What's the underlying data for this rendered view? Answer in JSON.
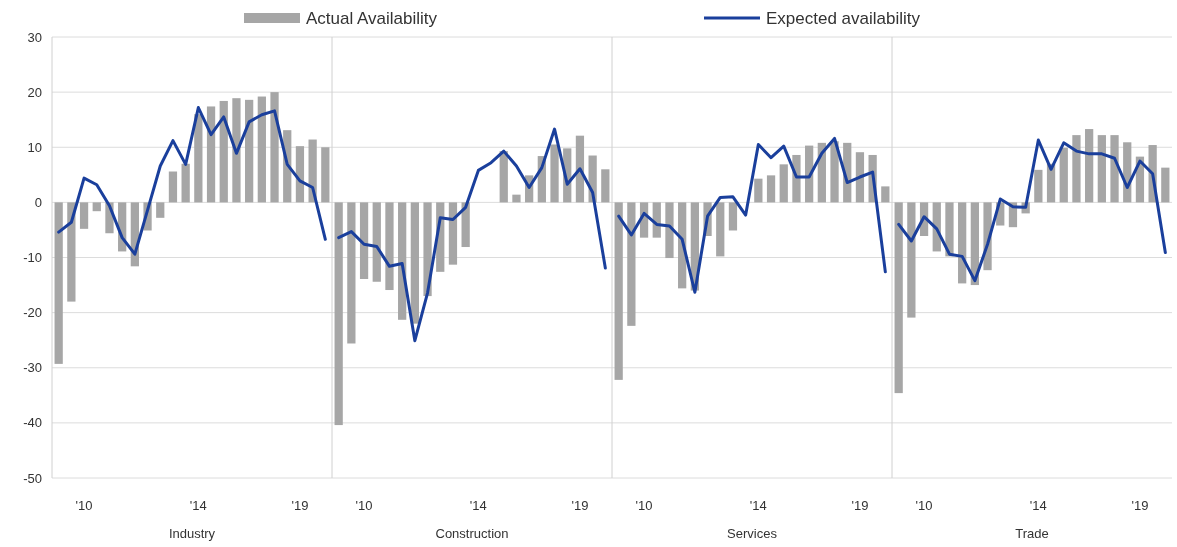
{
  "chart_data": [
    {
      "type": "bar",
      "xlabel": "Industry",
      "categories": [
        null,
        null,
        "'10",
        null,
        null,
        null,
        null,
        null,
        null,
        null,
        null,
        "'14",
        null,
        null,
        null,
        null,
        null,
        null,
        null,
        "'19",
        null,
        null
      ],
      "ylim": [
        -50,
        30
      ],
      "yticks": [
        -50,
        -40,
        -30,
        -20,
        -10,
        0,
        10,
        20,
        30
      ],
      "grid": "y",
      "legend": "top",
      "series": [
        {
          "name": "Actual Availability",
          "color": "#a6a6a6",
          "values": [
            -29.3,
            -18,
            -4.8,
            -1.6,
            -5.6,
            -8.9,
            -11.6,
            -5.1,
            -2.8,
            5.6,
            7,
            16,
            17.4,
            18.4,
            18.9,
            18.6,
            19.2,
            20,
            13.1,
            10.2,
            11.4,
            10
          ]
        },
        {
          "name": "Expected availability",
          "type": "line",
          "color": "#1a3f9c",
          "values": [
            -5.4,
            -3.6,
            4.4,
            3.2,
            -0.6,
            -6.4,
            -9.4,
            -1.4,
            6.6,
            11.2,
            6.9,
            17.2,
            12.3,
            15.5,
            8.9,
            14.6,
            15.9,
            16.6,
            6.9,
            3.9,
            2.7,
            -6.7
          ]
        }
      ]
    },
    {
      "type": "bar",
      "xlabel": "Construction",
      "categories": [
        null,
        null,
        "'10",
        null,
        null,
        null,
        null,
        null,
        null,
        null,
        null,
        "'14",
        null,
        null,
        null,
        null,
        null,
        null,
        null,
        "'19",
        null,
        null
      ],
      "ylim": [
        -50,
        30
      ],
      "yticks": [
        -50,
        -40,
        -30,
        -20,
        -10,
        0,
        10,
        20,
        30
      ],
      "grid": "y",
      "tick_labels": "x",
      "series": [
        {
          "color": "#a6a6a6",
          "values": [
            -40.4,
            -25.6,
            -13.9,
            -14.4,
            -15.9,
            -21.3,
            -22,
            -17,
            -12.6,
            -11.3,
            -8.1,
            null,
            null,
            9.3,
            1.4,
            4.9,
            8.4,
            10.5,
            9.8,
            12.1,
            8.5,
            6
          ]
        },
        {
          "type": "line",
          "color": "#1a3f9c",
          "values": [
            -6.4,
            -5.3,
            -7.6,
            -8,
            -11.6,
            -11.1,
            -25.1,
            -16.4,
            -2.8,
            -3.1,
            -0.9,
            5.8,
            7.2,
            9.3,
            6.6,
            2.7,
            6.3,
            13.3,
            3.3,
            6.1,
            1.8,
            -11.9
          ]
        }
      ]
    },
    {
      "type": "bar",
      "xlabel": "Services",
      "categories": [
        null,
        null,
        "'10",
        null,
        null,
        null,
        null,
        null,
        null,
        null,
        null,
        "'14",
        null,
        null,
        null,
        null,
        null,
        null,
        null,
        "'19",
        null,
        null
      ],
      "ylim": [
        -50,
        30
      ],
      "yticks": [
        -50,
        -40,
        -30,
        -20,
        -10,
        0,
        10,
        20,
        30
      ],
      "grid": "y",
      "tick_labels": "x",
      "series": [
        {
          "color": "#a6a6a6",
          "values": [
            -32.2,
            -22.4,
            -6.4,
            -6.4,
            -10.1,
            -15.6,
            -16,
            -6.1,
            -9.8,
            -5.1,
            null,
            4.3,
            4.9,
            6.9,
            8.6,
            10.3,
            10.8,
            11.1,
            10.8,
            9.1,
            8.6,
            2.9
          ]
        },
        {
          "type": "line",
          "color": "#1a3f9c",
          "values": [
            -2.5,
            -5.9,
            -2,
            -4,
            -4.3,
            -6.7,
            -16.3,
            -2.5,
            0.9,
            1,
            -2.3,
            10.5,
            8.1,
            10.2,
            4.6,
            4.6,
            8.9,
            11.6,
            3.6,
            4.6,
            5.5,
            -12.6
          ]
        }
      ]
    },
    {
      "type": "bar",
      "xlabel": "Trade",
      "categories": [
        null,
        null,
        "'10",
        null,
        null,
        null,
        null,
        null,
        null,
        null,
        null,
        "'14",
        null,
        null,
        null,
        null,
        null,
        null,
        null,
        "'19",
        null,
        null
      ],
      "ylim": [
        -50,
        30
      ],
      "yticks": [
        -50,
        -40,
        -30,
        -20,
        -10,
        0,
        10,
        20,
        30
      ],
      "grid": "y",
      "tick_labels": "x",
      "series": [
        {
          "color": "#a6a6a6",
          "values": [
            -34.6,
            -20.9,
            -6.1,
            -8.9,
            -9.8,
            -14.7,
            -15,
            -12.3,
            -4.2,
            -4.5,
            -2,
            5.9,
            7,
            9.9,
            12.2,
            13.3,
            12.2,
            12.2,
            10.9,
            8.3,
            10.4,
            6.3
          ]
        },
        {
          "type": "line",
          "color": "#1a3f9c",
          "values": [
            -4,
            -7,
            -2.6,
            -4.8,
            -9.4,
            -9.8,
            -14.2,
            -7.6,
            0.6,
            -0.8,
            -0.9,
            11.3,
            6,
            10.8,
            9.3,
            8.8,
            8.8,
            8,
            2.7,
            7.5,
            5.2,
            -9.1
          ]
        }
      ]
    }
  ]
}
